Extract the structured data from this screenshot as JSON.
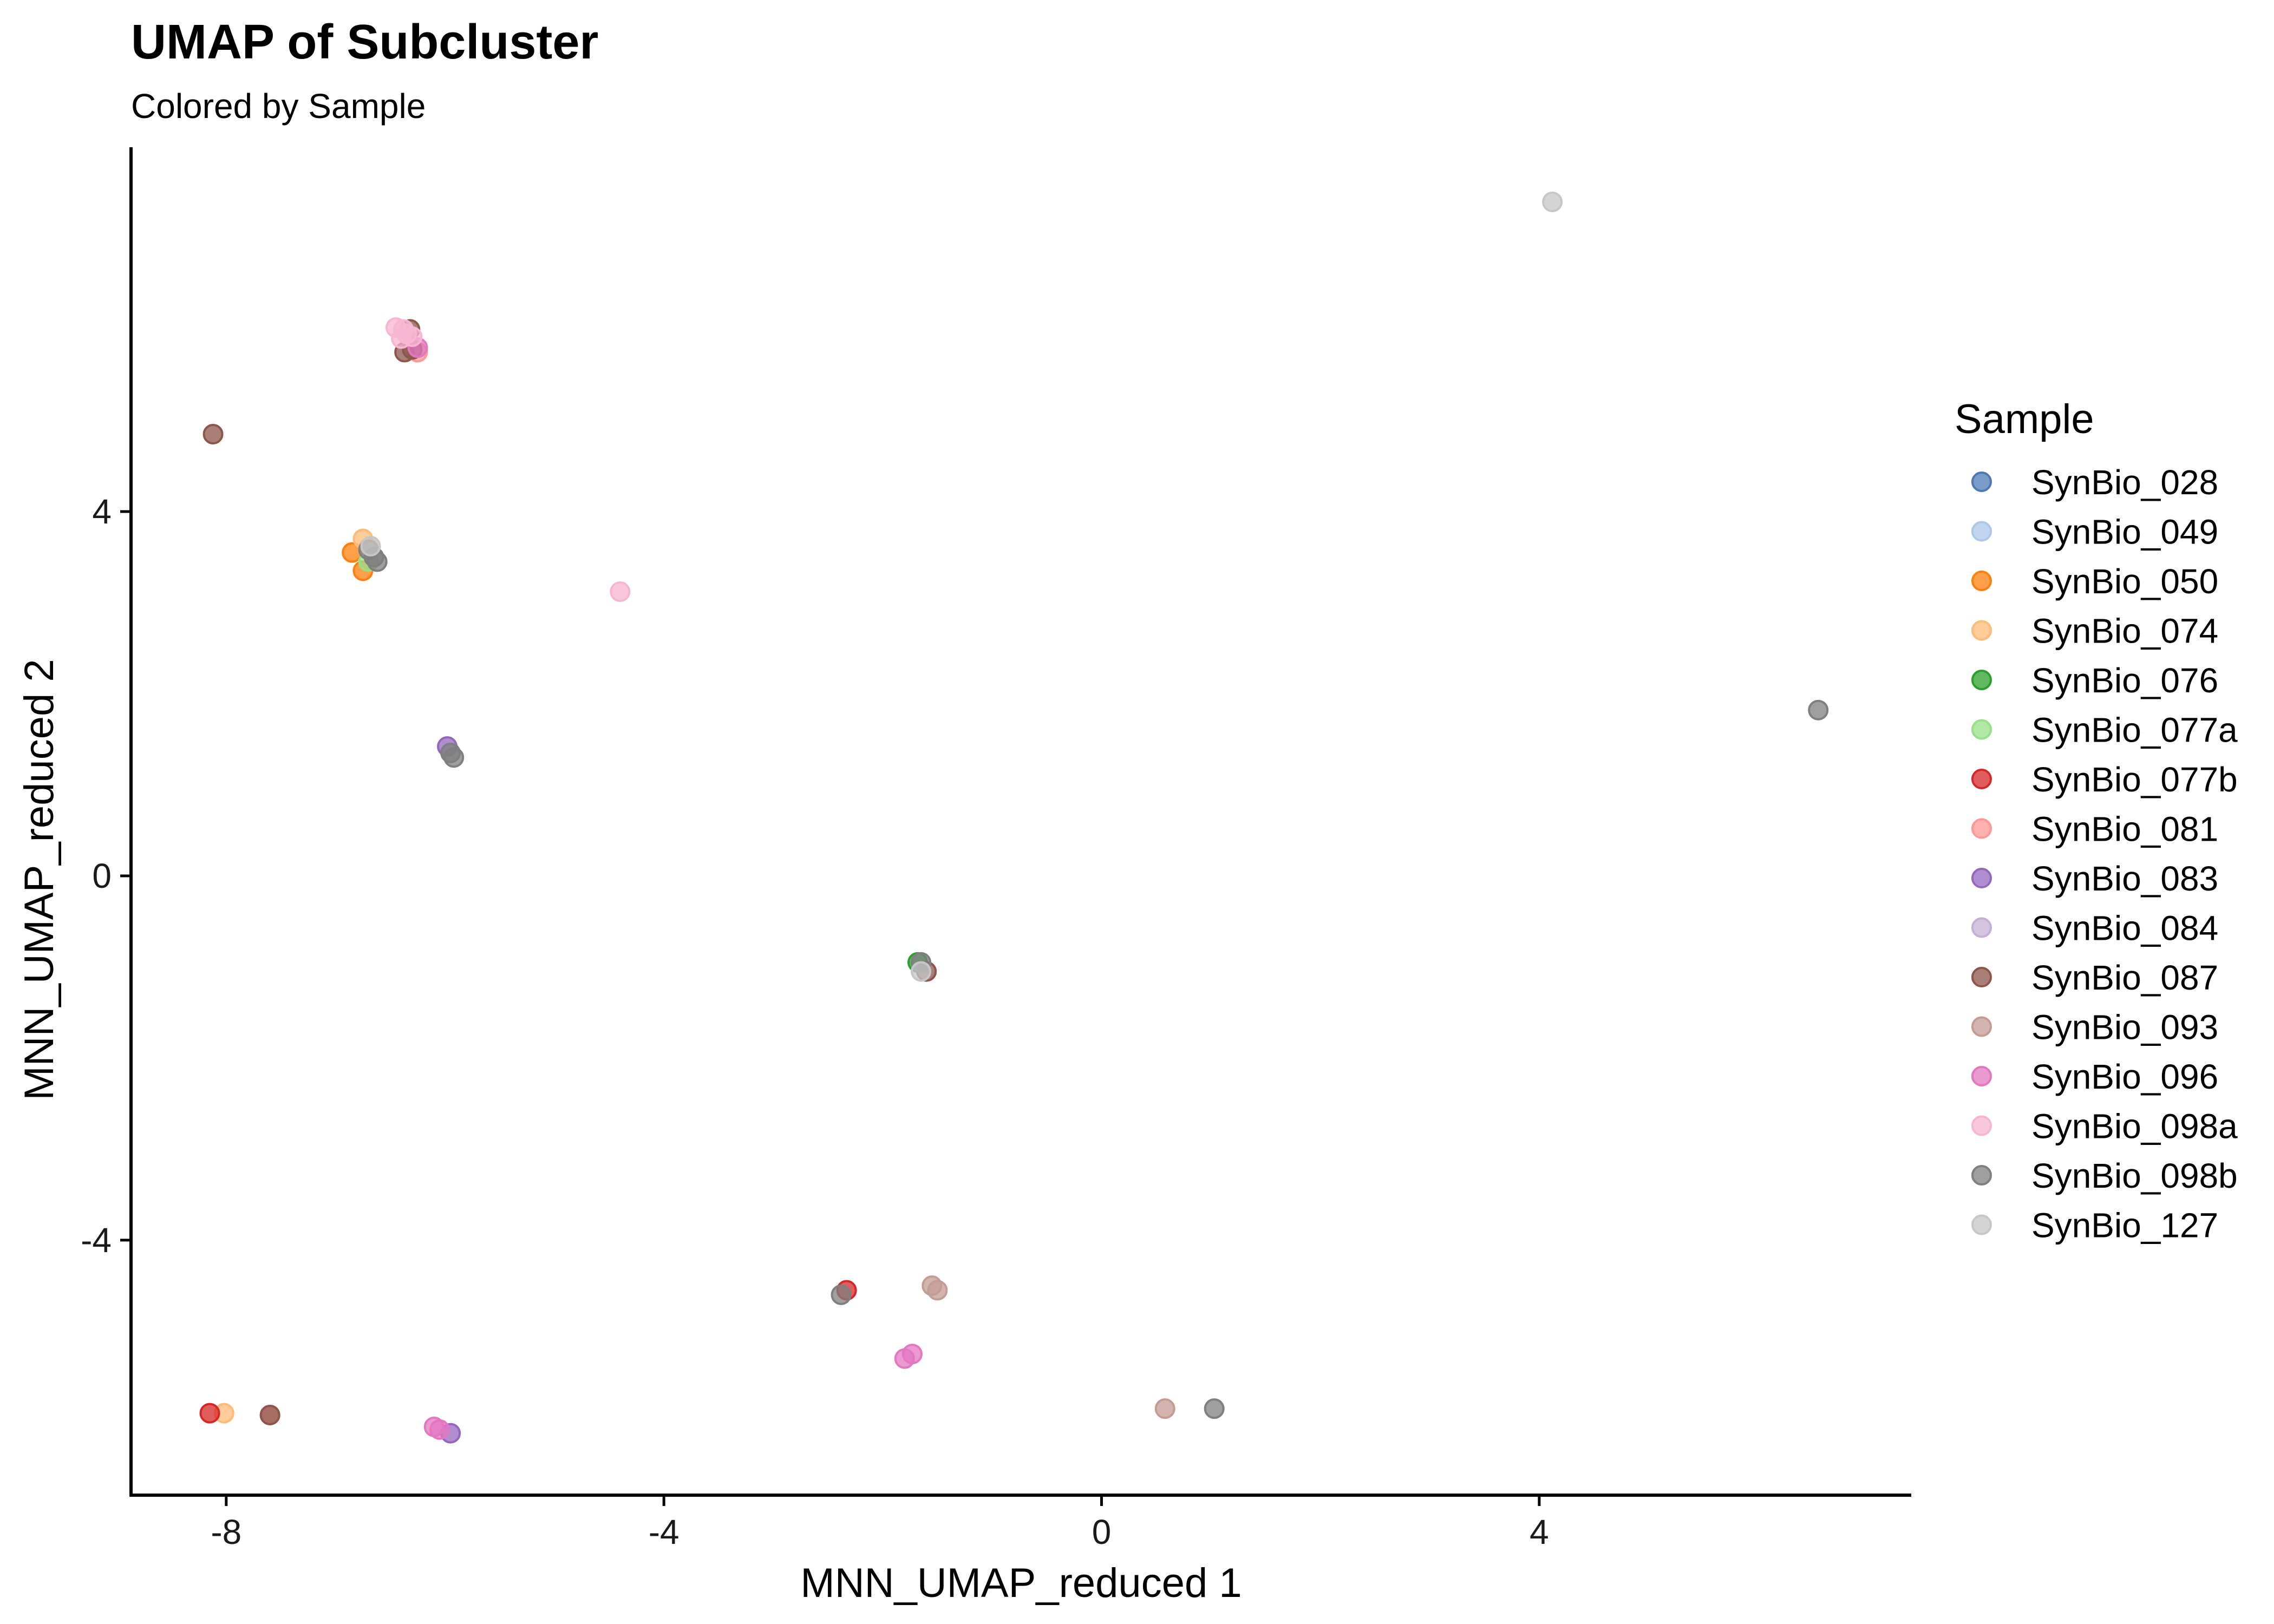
{
  "chart_data": {
    "type": "scatter",
    "title": "UMAP of Subcluster",
    "subtitle": "Colored by Sample",
    "xlabel": "MNN_UMAP_reduced 1",
    "ylabel": "MNN_UMAP_reduced 2",
    "xlim": [
      -8.87,
      7.4
    ],
    "ylim": [
      -6.8,
      8.0
    ],
    "xticks": [
      -8,
      -4,
      0,
      4
    ],
    "yticks": [
      -4,
      0,
      4
    ],
    "grid": false,
    "legend": {
      "title": "Sample",
      "placement": "right"
    },
    "series": [
      {
        "name": "SynBio_028",
        "color": "#4e79b5",
        "points": []
      },
      {
        "name": "SynBio_049",
        "color": "#aec7e8",
        "points": []
      },
      {
        "name": "SynBio_050",
        "color": "#ff7f0e",
        "points": [
          [
            -6.85,
            3.55
          ],
          [
            -6.75,
            3.35
          ]
        ]
      },
      {
        "name": "SynBio_074",
        "color": "#ffbb78",
        "points": [
          [
            -8.02,
            -5.9
          ],
          [
            -6.75,
            3.7
          ],
          [
            -6.7,
            3.6
          ]
        ]
      },
      {
        "name": "SynBio_076",
        "color": "#2ca02c",
        "points": [
          [
            -1.68,
            -0.95
          ]
        ]
      },
      {
        "name": "SynBio_077a",
        "color": "#98df8a",
        "points": [
          [
            -6.7,
            3.45
          ]
        ]
      },
      {
        "name": "SynBio_077b",
        "color": "#d62728",
        "points": [
          [
            -8.15,
            -5.9
          ],
          [
            -2.33,
            -4.55
          ]
        ]
      },
      {
        "name": "SynBio_081",
        "color": "#ff9896",
        "points": [
          [
            -6.25,
            5.75
          ],
          [
            -7.6,
            -5.92
          ]
        ]
      },
      {
        "name": "SynBio_083",
        "color": "#9467bd",
        "points": [
          [
            -5.95,
            -6.12
          ],
          [
            -5.98,
            1.42
          ]
        ]
      },
      {
        "name": "SynBio_084",
        "color": "#c5b0d5",
        "points": []
      },
      {
        "name": "SynBio_087",
        "color": "#8c564b",
        "points": [
          [
            -8.12,
            4.85
          ],
          [
            -6.37,
            5.75
          ],
          [
            -6.3,
            5.78
          ],
          [
            -6.32,
            6.0
          ],
          [
            -7.6,
            -5.92
          ],
          [
            -1.6,
            -1.05
          ]
        ]
      },
      {
        "name": "SynBio_093",
        "color": "#c49c94",
        "points": [
          [
            -1.55,
            -4.5
          ],
          [
            -1.5,
            -4.55
          ],
          [
            0.58,
            -5.85
          ]
        ]
      },
      {
        "name": "SynBio_096",
        "color": "#e377c2",
        "points": [
          [
            -6.1,
            -6.05
          ],
          [
            -6.05,
            -6.08
          ],
          [
            -1.8,
            -5.3
          ],
          [
            -1.73,
            -5.25
          ],
          [
            -6.25,
            5.8
          ]
        ]
      },
      {
        "name": "SynBio_098a",
        "color": "#f7b6d2",
        "points": [
          [
            -6.45,
            6.02
          ],
          [
            -6.38,
            6.0
          ],
          [
            -6.35,
            5.95
          ],
          [
            -6.4,
            5.9
          ],
          [
            -6.3,
            5.92
          ],
          [
            -4.4,
            3.12
          ]
        ]
      },
      {
        "name": "SynBio_098b",
        "color": "#7f7f7f",
        "points": [
          [
            -6.7,
            3.58
          ],
          [
            -6.65,
            3.5
          ],
          [
            -6.62,
            3.45
          ],
          [
            -5.95,
            1.35
          ],
          [
            -5.92,
            1.3
          ],
          [
            -1.65,
            -0.95
          ],
          [
            -2.38,
            -4.6
          ],
          [
            1.03,
            -5.85
          ],
          [
            6.55,
            1.82
          ]
        ]
      },
      {
        "name": "SynBio_127",
        "color": "#c7c7c7",
        "points": [
          [
            4.12,
            7.4
          ],
          [
            -1.65,
            -1.05
          ],
          [
            -6.68,
            3.62
          ]
        ]
      }
    ]
  }
}
